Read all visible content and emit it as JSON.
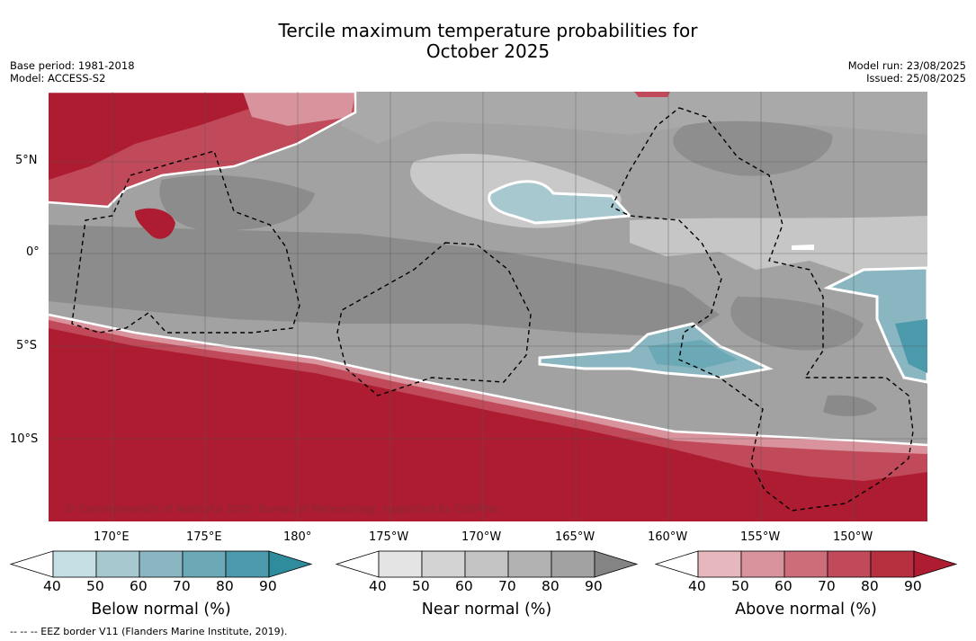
{
  "title": {
    "line1": "Tercile maximum temperature probabilities for",
    "line2": "October 2025"
  },
  "meta": {
    "base_period": "Base period: 1981-2018",
    "model": "Model: ACCESS-S2",
    "model_run": "Model run: 23/08/2025",
    "issued": "Issued: 25/08/2025"
  },
  "map": {
    "lat_labels": [
      "5°N",
      "0°",
      "5°S",
      "10°S"
    ],
    "lon_labels": [
      "170°E",
      "175°E",
      "180°",
      "175°W",
      "170°W",
      "165°W",
      "160°W",
      "155°W",
      "150°W"
    ],
    "copyright": "© Commonwealth of Australia 2025, Bureau of Meteorology, supported by COSPPac"
  },
  "colorbars": [
    {
      "title": "Below normal (%)",
      "ticks": [
        "40",
        "50",
        "60",
        "70",
        "80",
        "90"
      ],
      "colors": [
        "#ffffff",
        "#c6dfe5",
        "#a7c8cf",
        "#89b6c1",
        "#6aa9b5",
        "#4a9aab",
        "#2f8c9c"
      ]
    },
    {
      "title": "Near normal (%)",
      "ticks": [
        "40",
        "50",
        "60",
        "70",
        "80",
        "90"
      ],
      "colors": [
        "#ffffff",
        "#e4e4e4",
        "#d3d3d3",
        "#c3c3c3",
        "#b2b2b2",
        "#a2a2a2",
        "#848484"
      ]
    },
    {
      "title": "Above normal (%)",
      "ticks": [
        "40",
        "50",
        "60",
        "70",
        "80",
        "90"
      ],
      "colors": [
        "#ffffff",
        "#e6b8be",
        "#d9939c",
        "#cc6d79",
        "#c04a5a",
        "#b7303f",
        "#ad1c30"
      ]
    }
  ],
  "footer": "--  --  -- EEZ border V11 (Flanders Marine Institute, 2019)."
}
